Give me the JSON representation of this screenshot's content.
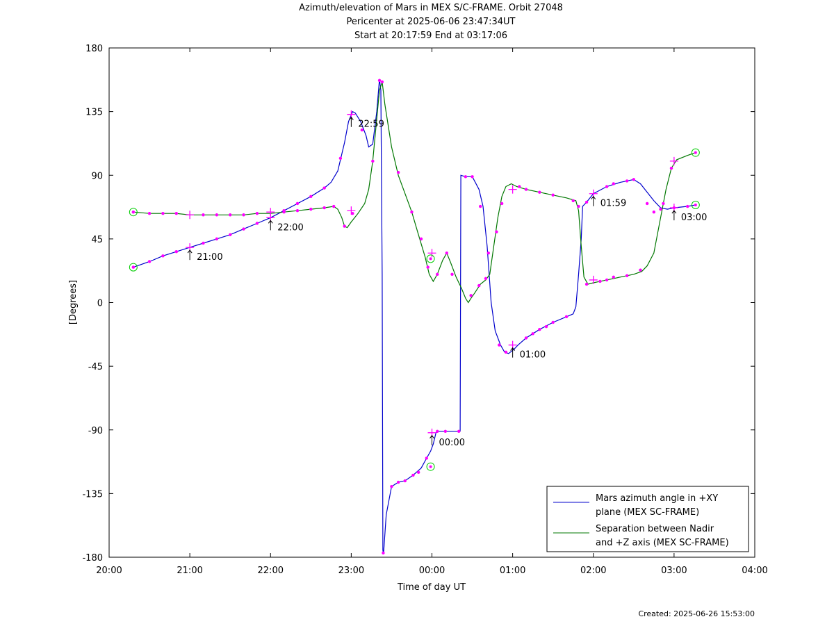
{
  "chart_data": {
    "type": "line",
    "title": "Azimuth/elevation of Mars in MEX S/C-FRAME.  Orbit 27048",
    "subtitle_1": "Pericenter at 2025-06-06 23:47:34UT",
    "subtitle_2": "Start at 20:17:59 End at 03:17:06",
    "xlabel": "Time of day UT",
    "ylabel": "[Degrees]",
    "xlim": [
      0,
      480
    ],
    "ylim": [
      -180,
      180
    ],
    "x_ticks": [
      {
        "v": 0,
        "label": "20:00"
      },
      {
        "v": 60,
        "label": "21:00"
      },
      {
        "v": 120,
        "label": "22:00"
      },
      {
        "v": 180,
        "label": "23:00"
      },
      {
        "v": 240,
        "label": "00:00"
      },
      {
        "v": 300,
        "label": "01:00"
      },
      {
        "v": 360,
        "label": "02:00"
      },
      {
        "v": 420,
        "label": "03:00"
      },
      {
        "v": 480,
        "label": "04:00"
      }
    ],
    "y_ticks": [
      {
        "v": 180,
        "label": "180"
      },
      {
        "v": 135,
        "label": "135"
      },
      {
        "v": 90,
        "label": "90"
      },
      {
        "v": 45,
        "label": "45"
      },
      {
        "v": 0,
        "label": "0"
      },
      {
        "v": -45,
        "label": "-45"
      },
      {
        "v": -90,
        "label": "-90"
      },
      {
        "v": -135,
        "label": "-135"
      },
      {
        "v": -180,
        "label": "-180"
      }
    ],
    "grid": false,
    "legend_position": "bottom-right",
    "legend": [
      {
        "line1": "Mars azimuth angle in +XY",
        "line2": "plane (MEX SC-FRAME)",
        "color": "#0000cc"
      },
      {
        "line1": "Separation between Nadir",
        "line2": "and +Z axis (MEX SC-FRAME)",
        "color": "#007700"
      }
    ],
    "series": [
      {
        "name": "Mars azimuth angle in +XY plane (MEX SC-FRAME)",
        "color": "#0000cc",
        "points": [
          [
            18,
            25
          ],
          [
            30,
            29
          ],
          [
            40,
            33
          ],
          [
            50,
            36
          ],
          [
            60,
            39
          ],
          [
            70,
            42
          ],
          [
            80,
            45
          ],
          [
            90,
            48
          ],
          [
            100,
            52
          ],
          [
            110,
            56
          ],
          [
            120,
            60
          ],
          [
            130,
            65
          ],
          [
            140,
            70
          ],
          [
            150,
            75
          ],
          [
            160,
            81
          ],
          [
            165,
            85
          ],
          [
            170,
            93
          ],
          [
            175,
            113
          ],
          [
            178,
            128
          ],
          [
            181,
            135
          ],
          [
            183,
            134
          ],
          [
            187,
            128
          ],
          [
            191,
            118
          ],
          [
            193,
            110
          ],
          [
            196,
            112
          ],
          [
            199,
            135
          ],
          [
            201,
            158
          ],
          [
            202,
            150
          ],
          [
            203,
            20
          ],
          [
            203.5,
            -175
          ],
          [
            204,
            -178
          ],
          [
            206,
            -150
          ],
          [
            210,
            -130
          ],
          [
            215,
            -127
          ],
          [
            220,
            -126
          ],
          [
            226,
            -122
          ],
          [
            232,
            -117
          ],
          [
            236,
            -110
          ],
          [
            239,
            -105
          ],
          [
            241,
            -100
          ],
          [
            243,
            -92
          ],
          [
            244,
            -91
          ],
          [
            255,
            -91
          ],
          [
            261,
            -91
          ],
          [
            261.5,
            90
          ],
          [
            265,
            89
          ],
          [
            270,
            89
          ],
          [
            275,
            80
          ],
          [
            278,
            68
          ],
          [
            281,
            40
          ],
          [
            284,
            0
          ],
          [
            287,
            -20
          ],
          [
            291,
            -30
          ],
          [
            294,
            -35
          ],
          [
            297,
            -36
          ],
          [
            301,
            -33
          ],
          [
            304,
            -30
          ],
          [
            310,
            -25
          ],
          [
            320,
            -19
          ],
          [
            330,
            -14
          ],
          [
            340,
            -10
          ],
          [
            345,
            -8
          ],
          [
            347,
            -3
          ],
          [
            349,
            20
          ],
          [
            351,
            45
          ],
          [
            352,
            68
          ],
          [
            355,
            71
          ],
          [
            360,
            77
          ],
          [
            370,
            82
          ],
          [
            380,
            85
          ],
          [
            390,
            87
          ],
          [
            395,
            84
          ],
          [
            400,
            78
          ],
          [
            405,
            72
          ],
          [
            410,
            67
          ],
          [
            415,
            66
          ],
          [
            420,
            67
          ],
          [
            430,
            68
          ],
          [
            436,
            69
          ]
        ]
      },
      {
        "name": "Separation between Nadir and +Z axis (MEX SC-FRAME)",
        "color": "#007700",
        "points": [
          [
            18,
            64
          ],
          [
            30,
            63
          ],
          [
            40,
            63
          ],
          [
            50,
            63
          ],
          [
            60,
            62
          ],
          [
            70,
            62
          ],
          [
            80,
            62
          ],
          [
            90,
            62
          ],
          [
            100,
            62
          ],
          [
            110,
            63
          ],
          [
            120,
            63
          ],
          [
            130,
            64
          ],
          [
            140,
            65
          ],
          [
            150,
            66
          ],
          [
            160,
            67
          ],
          [
            167,
            68
          ],
          [
            170,
            66
          ],
          [
            173,
            60
          ],
          [
            175,
            54
          ],
          [
            177,
            53
          ],
          [
            180,
            57
          ],
          [
            185,
            63
          ],
          [
            190,
            70
          ],
          [
            193,
            80
          ],
          [
            196,
            100
          ],
          [
            199,
            130
          ],
          [
            201,
            150
          ],
          [
            203,
            156
          ],
          [
            205,
            140
          ],
          [
            210,
            110
          ],
          [
            215,
            90
          ],
          [
            220,
            77
          ],
          [
            225,
            64
          ],
          [
            230,
            48
          ],
          [
            235,
            32
          ],
          [
            238,
            20
          ],
          [
            241,
            15
          ],
          [
            244,
            20
          ],
          [
            248,
            30
          ],
          [
            251,
            35
          ],
          [
            254,
            28
          ],
          [
            258,
            18
          ],
          [
            262,
            10
          ],
          [
            265,
            3
          ],
          [
            267,
            0
          ],
          [
            269,
            3
          ],
          [
            272,
            7
          ],
          [
            276,
            13
          ],
          [
            280,
            16
          ],
          [
            283,
            20
          ],
          [
            286,
            40
          ],
          [
            289,
            60
          ],
          [
            292,
            75
          ],
          [
            295,
            82
          ],
          [
            299,
            84
          ],
          [
            303,
            82
          ],
          [
            310,
            80
          ],
          [
            320,
            78
          ],
          [
            330,
            76
          ],
          [
            340,
            74
          ],
          [
            347,
            72
          ],
          [
            349,
            65
          ],
          [
            351,
            40
          ],
          [
            353,
            18
          ],
          [
            356,
            13
          ],
          [
            360,
            14
          ],
          [
            370,
            16
          ],
          [
            380,
            18
          ],
          [
            390,
            20
          ],
          [
            396,
            22
          ],
          [
            400,
            26
          ],
          [
            405,
            35
          ],
          [
            410,
            60
          ],
          [
            414,
            80
          ],
          [
            418,
            95
          ],
          [
            422,
            101
          ],
          [
            430,
            104
          ],
          [
            436,
            106
          ]
        ]
      }
    ],
    "markers": {
      "azimuth": [
        [
          18,
          25
        ],
        [
          30,
          29
        ],
        [
          40,
          33
        ],
        [
          50,
          36
        ],
        [
          70,
          42
        ],
        [
          80,
          45
        ],
        [
          90,
          48
        ],
        [
          100,
          52
        ],
        [
          110,
          56
        ],
        [
          130,
          65
        ],
        [
          140,
          70
        ],
        [
          150,
          75
        ],
        [
          160,
          81
        ],
        [
          172,
          102
        ],
        [
          188,
          122
        ],
        [
          201,
          157
        ],
        [
          203.8,
          -177
        ],
        [
          210,
          -130
        ],
        [
          215,
          -127
        ],
        [
          220,
          -126
        ],
        [
          226,
          -122
        ],
        [
          230,
          -120
        ],
        [
          236,
          -110
        ],
        [
          244,
          -91
        ],
        [
          250,
          -91
        ],
        [
          260,
          -91
        ],
        [
          265,
          89
        ],
        [
          270,
          89
        ],
        [
          276,
          68
        ],
        [
          282,
          35
        ],
        [
          290,
          -30
        ],
        [
          295,
          -35
        ],
        [
          310,
          -25
        ],
        [
          315,
          -22
        ],
        [
          320,
          -19
        ],
        [
          325,
          -17
        ],
        [
          330,
          -14
        ],
        [
          340,
          -10
        ],
        [
          349,
          68
        ],
        [
          355,
          71
        ],
        [
          370,
          82
        ],
        [
          375,
          84
        ],
        [
          385,
          86
        ],
        [
          390,
          87
        ],
        [
          400,
          70
        ],
        [
          410,
          66
        ],
        [
          420,
          67
        ],
        [
          430,
          68
        ]
      ],
      "separation": [
        [
          18,
          64
        ],
        [
          30,
          63
        ],
        [
          40,
          63
        ],
        [
          50,
          63
        ],
        [
          70,
          62
        ],
        [
          80,
          62
        ],
        [
          90,
          62
        ],
        [
          100,
          62
        ],
        [
          110,
          63
        ],
        [
          130,
          64
        ],
        [
          140,
          65
        ],
        [
          150,
          66
        ],
        [
          160,
          67
        ],
        [
          167,
          68
        ],
        [
          175,
          54
        ],
        [
          181,
          63
        ],
        [
          196,
          100
        ],
        [
          203,
          156
        ],
        [
          215,
          92
        ],
        [
          225,
          64
        ],
        [
          232,
          45
        ],
        [
          237,
          25
        ],
        [
          244,
          20
        ],
        [
          251,
          35
        ],
        [
          255,
          20
        ],
        [
          269,
          5
        ],
        [
          275,
          12
        ],
        [
          280,
          17
        ],
        [
          288,
          50
        ],
        [
          292,
          70
        ],
        [
          305,
          82
        ],
        [
          310,
          80
        ],
        [
          320,
          78
        ],
        [
          330,
          76
        ],
        [
          345,
          72
        ],
        [
          355,
          13
        ],
        [
          365,
          15
        ],
        [
          370,
          16
        ],
        [
          375,
          18
        ],
        [
          385,
          19
        ],
        [
          395,
          23
        ],
        [
          405,
          64
        ],
        [
          412,
          70
        ],
        [
          418,
          95
        ]
      ]
    },
    "crosses": [
      [
        60,
        39
      ],
      [
        120,
        60
      ],
      [
        180,
        133
      ],
      [
        240,
        -92
      ],
      [
        300,
        -30
      ],
      [
        360,
        77
      ],
      [
        420,
        67
      ],
      [
        60,
        62
      ],
      [
        120,
        64
      ],
      [
        180,
        65
      ],
      [
        240,
        35
      ],
      [
        300,
        80
      ],
      [
        360,
        16
      ],
      [
        420,
        100
      ]
    ],
    "start_end_circles": [
      [
        18,
        25
      ],
      [
        18,
        64
      ],
      [
        436,
        69
      ],
      [
        436,
        106
      ],
      [
        239,
        -116
      ],
      [
        239,
        31
      ]
    ],
    "time_annotations": [
      {
        "x": 60,
        "y": 39,
        "label": "21:00"
      },
      {
        "x": 120,
        "y": 60,
        "label": "22:00"
      },
      {
        "x": 180,
        "y": 133,
        "label": "22:59"
      },
      {
        "x": 240,
        "y": -92,
        "label": "00:00"
      },
      {
        "x": 300,
        "y": -30,
        "label": "01:00"
      },
      {
        "x": 360,
        "y": 77,
        "label": "01:59"
      },
      {
        "x": 420,
        "y": 67,
        "label": "03:00"
      }
    ],
    "marker_color": "#ff00ff",
    "circle_color": "#00cc00",
    "created": "Created: 2025-06-26 15:53:00"
  }
}
